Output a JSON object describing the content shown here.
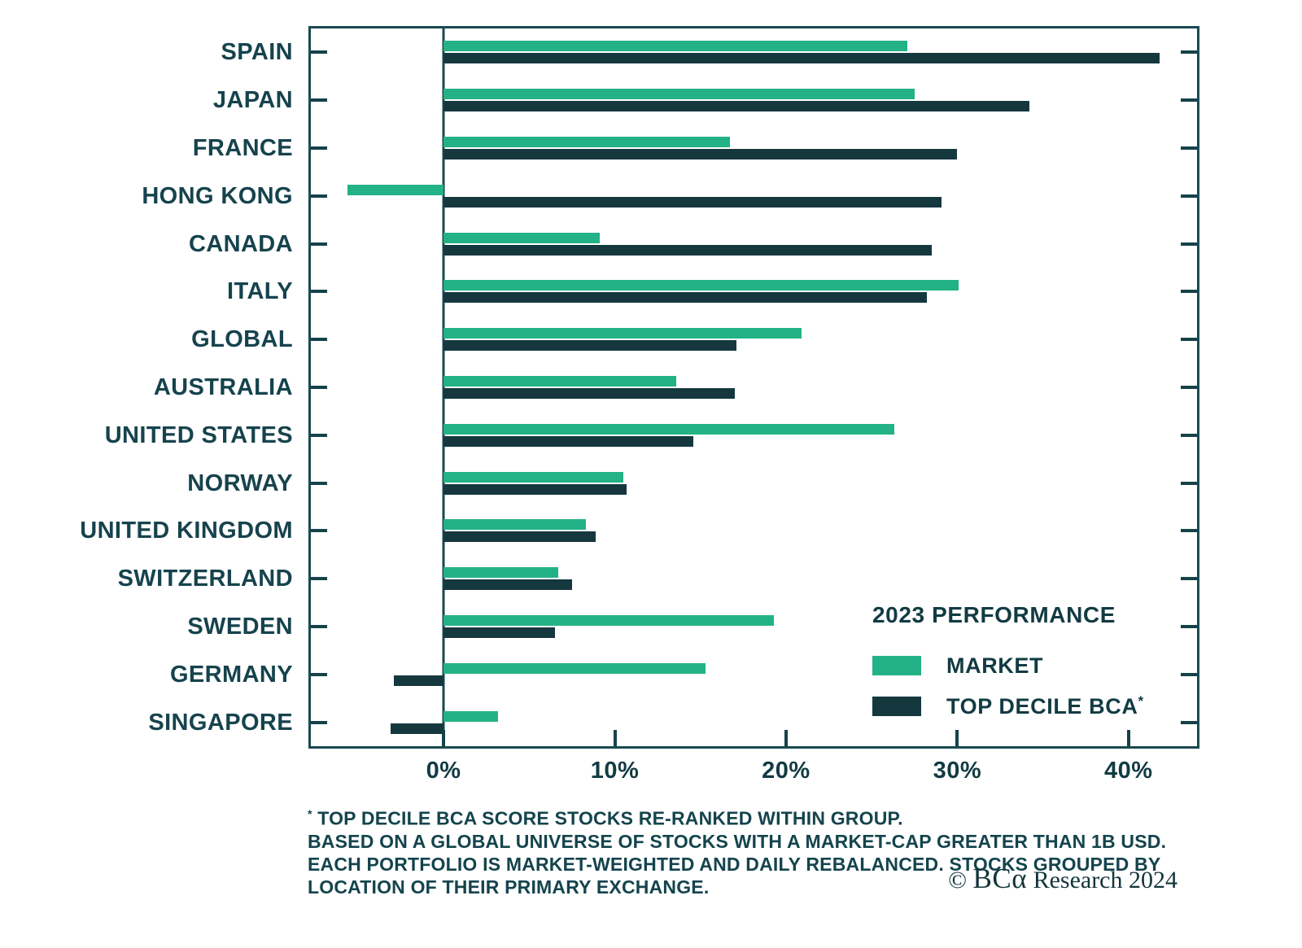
{
  "chart_data": {
    "type": "bar",
    "orientation": "horizontal",
    "title": "",
    "categories": [
      "SPAIN",
      "JAPAN",
      "FRANCE",
      "HONG KONG",
      "CANADA",
      "ITALY",
      "GLOBAL",
      "AUSTRALIA",
      "UNITED STATES",
      "NORWAY",
      "UNITED KINGDOM",
      "SWITZERLAND",
      "SWEDEN",
      "GERMANY",
      "SINGAPORE"
    ],
    "series": [
      {
        "name": "MARKET",
        "color": "#23B286",
        "values": [
          27.1,
          27.5,
          16.7,
          -5.6,
          9.1,
          30.1,
          20.9,
          13.6,
          26.3,
          10.5,
          8.3,
          6.7,
          19.3,
          15.3,
          3.2
        ]
      },
      {
        "name": "TOP DECILE BCA*",
        "color": "#15383F",
        "values": [
          41.8,
          34.2,
          30.0,
          29.1,
          28.5,
          28.2,
          17.1,
          17.0,
          14.6,
          10.7,
          8.9,
          7.5,
          6.5,
          -2.9,
          -3.1
        ]
      }
    ],
    "x_axis": {
      "unit": "%",
      "ticks": [
        0,
        10,
        20,
        30,
        40
      ],
      "tick_labels": [
        "0%",
        "10%",
        "20%",
        "30%",
        "40%"
      ],
      "min": -7.75,
      "max": 44.0
    },
    "grid": false,
    "legend_position": "inside-bottom-right"
  },
  "legend": {
    "title": "2023 PERFORMANCE",
    "items": [
      {
        "label": "MARKET",
        "sup": "",
        "color_key": "market"
      },
      {
        "label": "TOP DECILE BCA",
        "sup": "*",
        "color_key": "top_decile"
      }
    ]
  },
  "footnote": {
    "lines": [
      "* TOP DECILE BCA SCORE STOCKS RE-RANKED WITHIN GROUP.",
      "BASED ON A GLOBAL UNIVERSE OF STOCKS WITH A MARKET-CAP GREATER THAN 1B USD.",
      "EACH PORTFOLIO IS MARKET-WEIGHTED AND DAILY REBALANCED. STOCKS GROUPED BY",
      "LOCATION OF THEIR PRIMARY EXCHANGE."
    ]
  },
  "copyright": {
    "symbol": "©",
    "brand": "BCα",
    "text": "Research",
    "year": "2024"
  },
  "colors": {
    "market": "#23B286",
    "top_decile": "#15383F",
    "axis": "#1A4A50",
    "text": "#16434D"
  }
}
